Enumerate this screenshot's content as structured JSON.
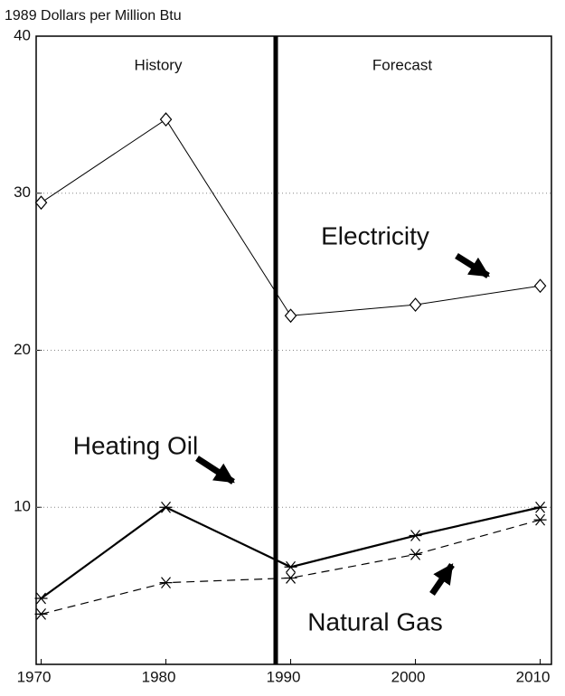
{
  "chart_data": {
    "type": "line",
    "y_label": "1989 Dollars per Million Btu",
    "x": [
      1970,
      1980,
      1990,
      2000,
      2010
    ],
    "series": [
      {
        "name": "Electricity",
        "color": "#000000",
        "marker": "diamond",
        "dash": false,
        "width": 1,
        "values": [
          29.4,
          34.7,
          22.2,
          22.9,
          24.1
        ]
      },
      {
        "name": "Heating Oil",
        "color": "#000000",
        "marker": "star",
        "dash": false,
        "width": 2.2,
        "values": [
          4.2,
          10.0,
          6.2,
          8.2,
          10.0
        ]
      },
      {
        "name": "Natural Gas",
        "color": "#000000",
        "marker": "star",
        "dash": true,
        "width": 1.2,
        "values": [
          3.2,
          5.2,
          5.5,
          7.0,
          9.2
        ]
      }
    ],
    "xlim": [
      1969.6,
      2010.9
    ],
    "xticks": [
      1970,
      1980,
      1990,
      2000,
      2010
    ],
    "ylim": [
      0,
      40
    ],
    "yticks": [
      10,
      20,
      30,
      40
    ],
    "grid": true,
    "divider_x": 1988.8,
    "period_labels": [
      "History",
      "Forecast"
    ]
  }
}
